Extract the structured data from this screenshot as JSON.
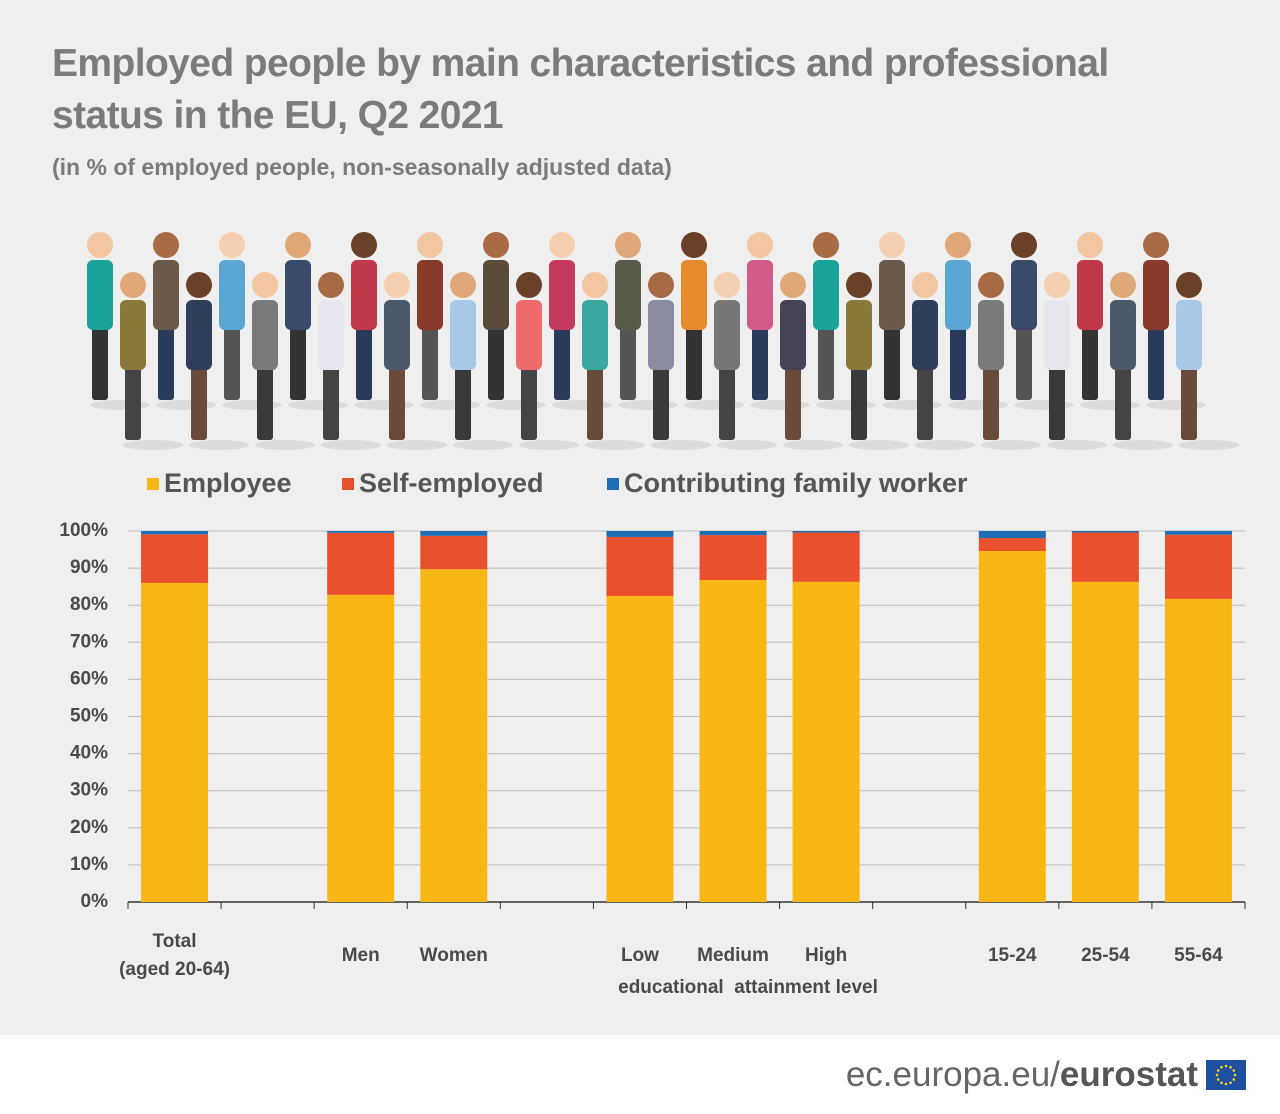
{
  "chart_data": {
    "type": "stacked-bar",
    "title": "Employed people by main characteristics and professional status in the EU, Q2 2021",
    "subtitle": "(in % of employed people, non-seasonally adjusted data)",
    "categories": [
      "Total\n(aged 20-64)",
      null,
      "Men",
      "Women",
      null,
      "Low",
      "Medium",
      "High",
      null,
      "15-24",
      "25-54",
      "55-64"
    ],
    "annotation": "educational  attainment level",
    "series": [
      {
        "name": "Employee",
        "color": "#f8b715",
        "values": [
          86.0,
          null,
          82.8,
          89.7,
          null,
          82.5,
          86.8,
          86.3,
          null,
          94.6,
          86.3,
          81.7
        ]
      },
      {
        "name": "Self-employed",
        "color": "#e9502d",
        "values": [
          13.1,
          null,
          16.7,
          9.0,
          null,
          15.9,
          12.1,
          13.3,
          null,
          3.5,
          13.3,
          17.3
        ]
      },
      {
        "name": "Contributing family worker",
        "color": "#1f6fb6",
        "values": [
          0.9,
          null,
          0.5,
          1.3,
          null,
          1.6,
          1.1,
          0.4,
          null,
          1.9,
          0.4,
          1.0
        ]
      }
    ],
    "ylim": [
      0,
      100
    ],
    "yticks": [
      {
        "value": 0,
        "label": "0%"
      },
      {
        "value": 10,
        "label": "10%"
      },
      {
        "value": 20,
        "label": "20%"
      },
      {
        "value": 30,
        "label": "30%"
      },
      {
        "value": 40,
        "label": "40%"
      },
      {
        "value": 50,
        "label": "50%"
      },
      {
        "value": 60,
        "label": "60%"
      },
      {
        "value": 70,
        "label": "70%"
      },
      {
        "value": 80,
        "label": "80%"
      },
      {
        "value": 90,
        "label": "90%"
      },
      {
        "value": 100,
        "label": "100%"
      }
    ],
    "grid": true
  },
  "footer": {
    "site": "ec.europa.eu/",
    "brand": "eurostat"
  }
}
